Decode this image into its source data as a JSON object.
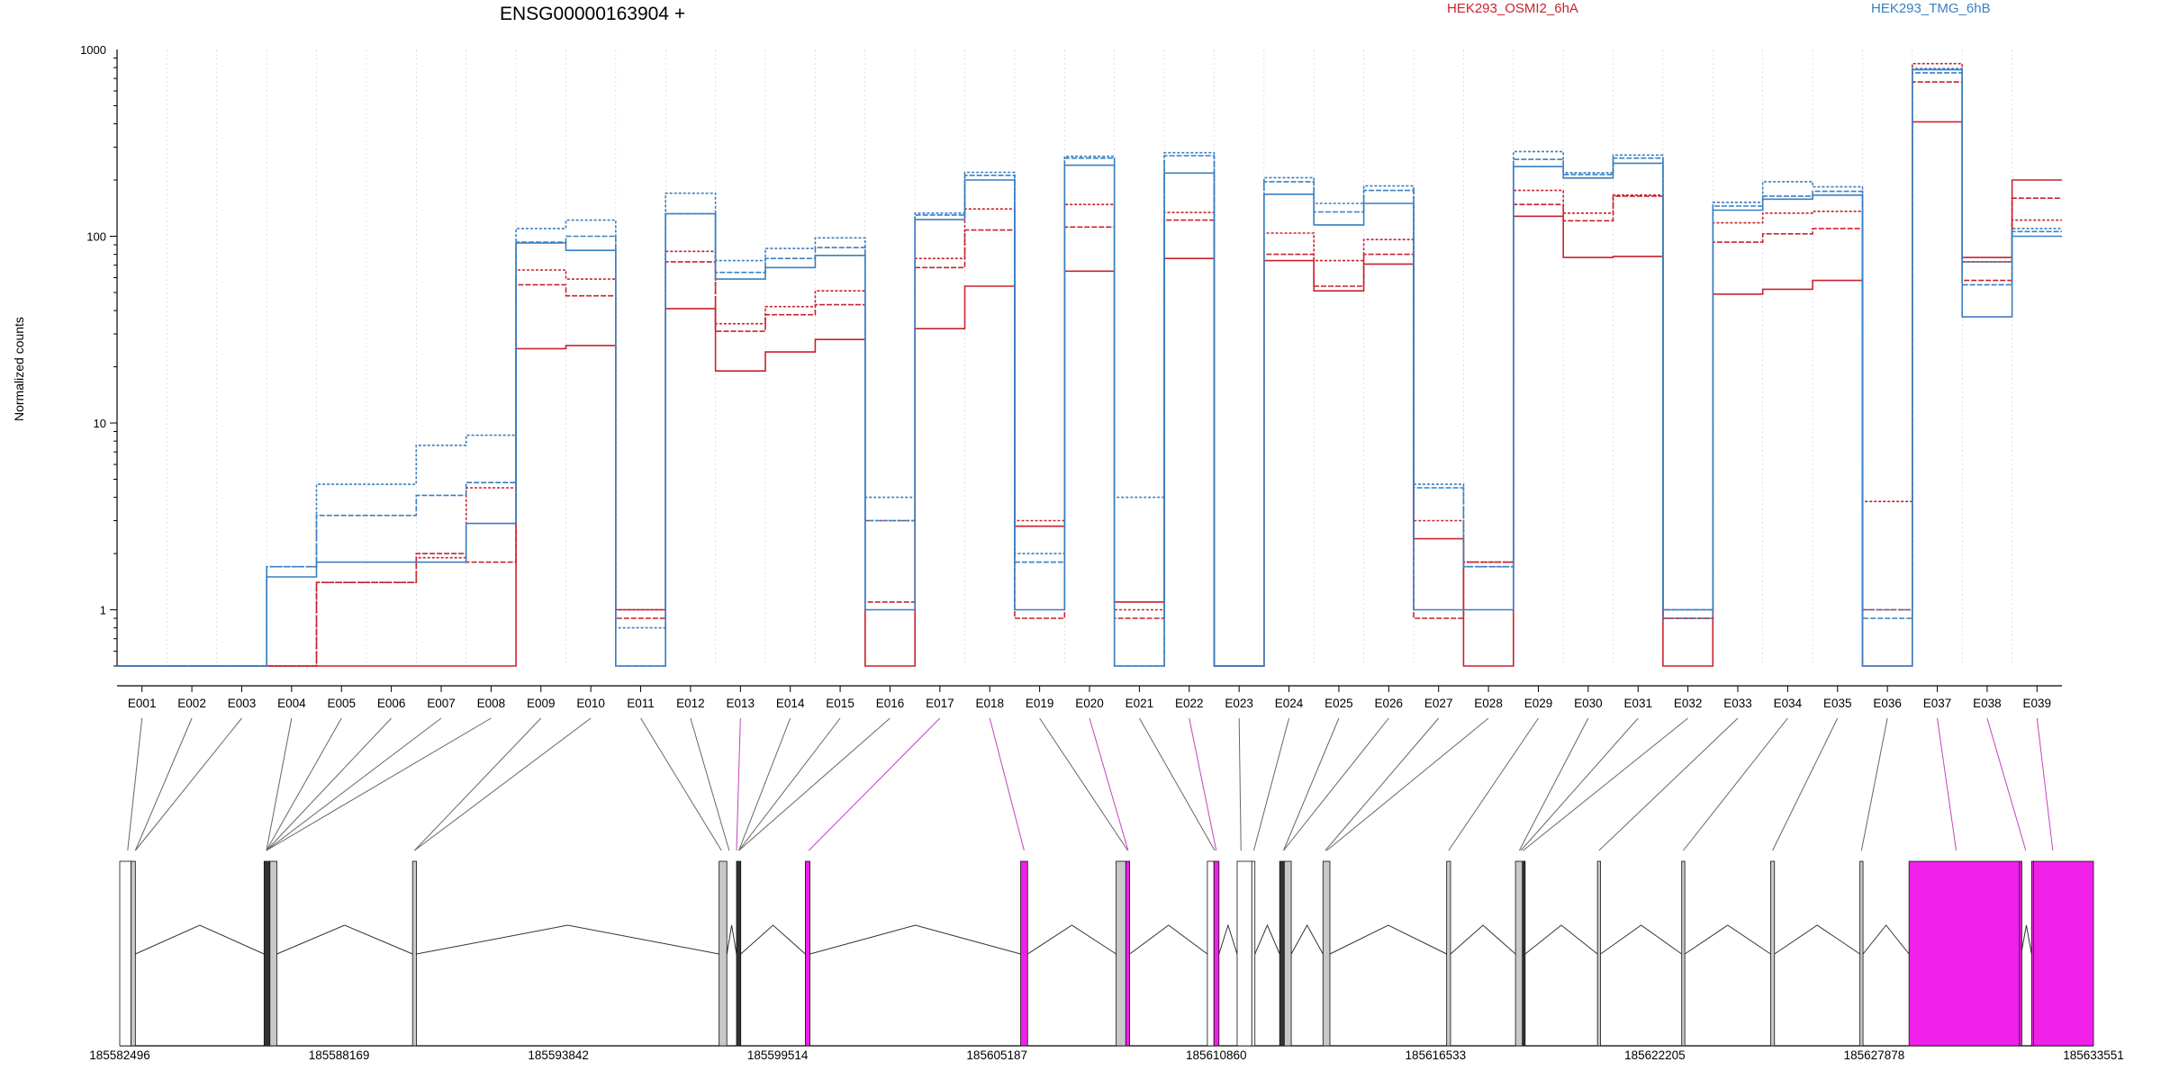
{
  "chart_data": {
    "type": "line",
    "title": "ENSG00000163904 +",
    "ylabel": "Normalized counts",
    "y_scale": "log",
    "ylim": [
      0.5,
      1000
    ],
    "y_ticks": [
      "1",
      "10",
      "100",
      "1000"
    ],
    "legend_placement": "top",
    "grid": false,
    "categories": [
      "E001",
      "E002",
      "E003",
      "E004",
      "E005",
      "E006",
      "E007",
      "E008",
      "E009",
      "E010",
      "E011",
      "E012",
      "E013",
      "E014",
      "E015",
      "E016",
      "E017",
      "E018",
      "E019",
      "E020",
      "E021",
      "E022",
      "E023",
      "E024",
      "E025",
      "E026",
      "E027",
      "E028",
      "E029",
      "E030",
      "E031",
      "E032",
      "E033",
      "E034",
      "E035",
      "E036",
      "E037",
      "E038",
      "E039"
    ],
    "colors": {
      "HEK293_OSMI2_6hA": "#c8232c",
      "HEK293_TMG_6hB": "#3a7fc1"
    },
    "series": [
      {
        "name": "HEK293_OSMI2_6hA",
        "group": "HEK293_OSMI2_6hA",
        "values": [
          0.5,
          0.5,
          0.5,
          0.5,
          0.5,
          0.5,
          0.5,
          0.5,
          25,
          26,
          1.0,
          41,
          19,
          24,
          28,
          0.5,
          32,
          54,
          2.8,
          65,
          1.1,
          76,
          0.5,
          74,
          51,
          71,
          2.4,
          0.5,
          128,
          77,
          78,
          0.5,
          49,
          52,
          58,
          0.5,
          410,
          77,
          200
        ]
      },
      {
        "name": "",
        "group": "HEK293_OSMI2_6hA",
        "values": [
          0.5,
          0.5,
          0.5,
          0.5,
          1.4,
          1.4,
          2.0,
          1.8,
          55,
          48,
          0.9,
          73,
          31,
          38,
          43,
          1.1,
          68,
          108,
          0.9,
          112,
          0.9,
          122,
          0.5,
          80,
          54,
          80,
          0.9,
          1.8,
          148,
          121,
          164,
          0.9,
          93,
          103,
          110,
          1.0,
          670,
          58,
          160
        ]
      },
      {
        "name": "",
        "group": "HEK293_OSMI2_6hA",
        "values": [
          0.5,
          0.5,
          0.5,
          0.5,
          1.4,
          1.4,
          1.9,
          4.5,
          66,
          59,
          1.0,
          83,
          34,
          42,
          51,
          3.0,
          76,
          140,
          3.0,
          148,
          1.0,
          134,
          0.5,
          104,
          74,
          96,
          3.0,
          1.8,
          176,
          133,
          166,
          0.9,
          118,
          133,
          136,
          3.8,
          840,
          73,
          122
        ]
      },
      {
        "name": "HEK293_TMG_6hB",
        "group": "HEK293_TMG_6hB",
        "values": [
          0.5,
          0.5,
          0.5,
          1.5,
          1.8,
          1.8,
          1.8,
          2.9,
          92,
          84,
          0.5,
          132,
          59,
          68,
          79,
          1.0,
          123,
          200,
          1.0,
          240,
          0.5,
          218,
          0.5,
          168,
          115,
          150,
          1.0,
          1.0,
          236,
          205,
          246,
          1.0,
          138,
          158,
          166,
          0.5,
          780,
          37,
          100
        ]
      },
      {
        "name": "",
        "group": "HEK293_TMG_6hB",
        "values": [
          0.5,
          0.5,
          0.5,
          1.7,
          3.2,
          3.2,
          4.1,
          4.8,
          93,
          100,
          0.5,
          132,
          64,
          76,
          87,
          3.0,
          130,
          212,
          1.8,
          262,
          0.5,
          270,
          0.5,
          196,
          135,
          176,
          4.5,
          1.7,
          258,
          214,
          262,
          1.0,
          145,
          164,
          174,
          0.9,
          750,
          55,
          106
        ]
      },
      {
        "name": "",
        "group": "HEK293_TMG_6hB",
        "values": [
          0.5,
          0.5,
          0.5,
          1.7,
          4.7,
          4.7,
          7.6,
          8.6,
          110,
          122,
          0.8,
          170,
          74,
          86,
          98,
          4.0,
          133,
          220,
          2.0,
          268,
          4.0,
          280,
          0.5,
          206,
          150,
          186,
          4.7,
          1.7,
          284,
          219,
          272,
          0.9,
          152,
          196,
          184,
          1.0,
          790,
          73,
          110
        ]
      }
    ],
    "gene_model": {
      "coordinate_labels": [
        "185582496",
        "185588169",
        "185593842",
        "185599514",
        "185605187",
        "185610860",
        "185616533",
        "185622205",
        "185627878",
        "185633551"
      ],
      "range": [
        185582496,
        185633551
      ],
      "exons": [
        {
          "start": 185582496,
          "end": 185582790,
          "fill": "none"
        },
        {
          "start": 185582790,
          "end": 185582900,
          "fill": "grey"
        },
        {
          "start": 185586230,
          "end": 185586380,
          "fill": "dark"
        },
        {
          "start": 185586380,
          "end": 185586560,
          "fill": "grey"
        },
        {
          "start": 185590070,
          "end": 185590170,
          "fill": "grey"
        },
        {
          "start": 185598000,
          "end": 185598200,
          "fill": "grey"
        },
        {
          "start": 185598450,
          "end": 185598560,
          "fill": "dark"
        },
        {
          "start": 185600230,
          "end": 185600350,
          "fill": "magenta"
        },
        {
          "start": 185605800,
          "end": 185605980,
          "fill": "magenta"
        },
        {
          "start": 185608270,
          "end": 185608520,
          "fill": "grey"
        },
        {
          "start": 185608520,
          "end": 185608620,
          "fill": "magenta"
        },
        {
          "start": 185610630,
          "end": 185610800,
          "fill": "none"
        },
        {
          "start": 185610800,
          "end": 185610930,
          "fill": "magenta"
        },
        {
          "start": 185611400,
          "end": 185611780,
          "fill": "none"
        },
        {
          "start": 185611780,
          "end": 185611860,
          "fill": "none"
        },
        {
          "start": 185612500,
          "end": 185612620,
          "fill": "dark"
        },
        {
          "start": 185612620,
          "end": 185612800,
          "fill": "grey"
        },
        {
          "start": 185613620,
          "end": 185613800,
          "fill": "grey"
        },
        {
          "start": 185616820,
          "end": 185616920,
          "fill": "grey"
        },
        {
          "start": 185618600,
          "end": 185618780,
          "fill": "grey"
        },
        {
          "start": 185618780,
          "end": 185618850,
          "fill": "dark"
        },
        {
          "start": 185620720,
          "end": 185620800,
          "fill": "grey"
        },
        {
          "start": 185622900,
          "end": 185622980,
          "fill": "grey"
        },
        {
          "start": 185625200,
          "end": 185625300,
          "fill": "grey"
        },
        {
          "start": 185627510,
          "end": 185627590,
          "fill": "grey"
        },
        {
          "start": 185628780,
          "end": 185631640,
          "fill": "magenta"
        },
        {
          "start": 185631640,
          "end": 185631680,
          "fill": "magenta"
        },
        {
          "start": 185631950,
          "end": 185632000,
          "fill": "magenta"
        },
        {
          "start": 185632000,
          "end": 185633551,
          "fill": "magenta"
        }
      ],
      "bin_positions": [
        185582700,
        185582900,
        185582900,
        185586290,
        185586290,
        185586290,
        185586290,
        185586290,
        185590120,
        185590120,
        185598060,
        185598260,
        185598450,
        185598510,
        185598510,
        185598510,
        185600320,
        185605890,
        185608570,
        185608580,
        185610820,
        185610860,
        185611500,
        185611830,
        185612600,
        185612600,
        185613680,
        185613720,
        185616870,
        185618700,
        185618740,
        185618800,
        185620760,
        185622940,
        185625250,
        185627550,
        185630000,
        185631800,
        185632500
      ],
      "highlighted_bins": [
        "E013",
        "E017",
        "E018",
        "E020",
        "E022",
        "E037",
        "E038",
        "E039"
      ]
    }
  }
}
